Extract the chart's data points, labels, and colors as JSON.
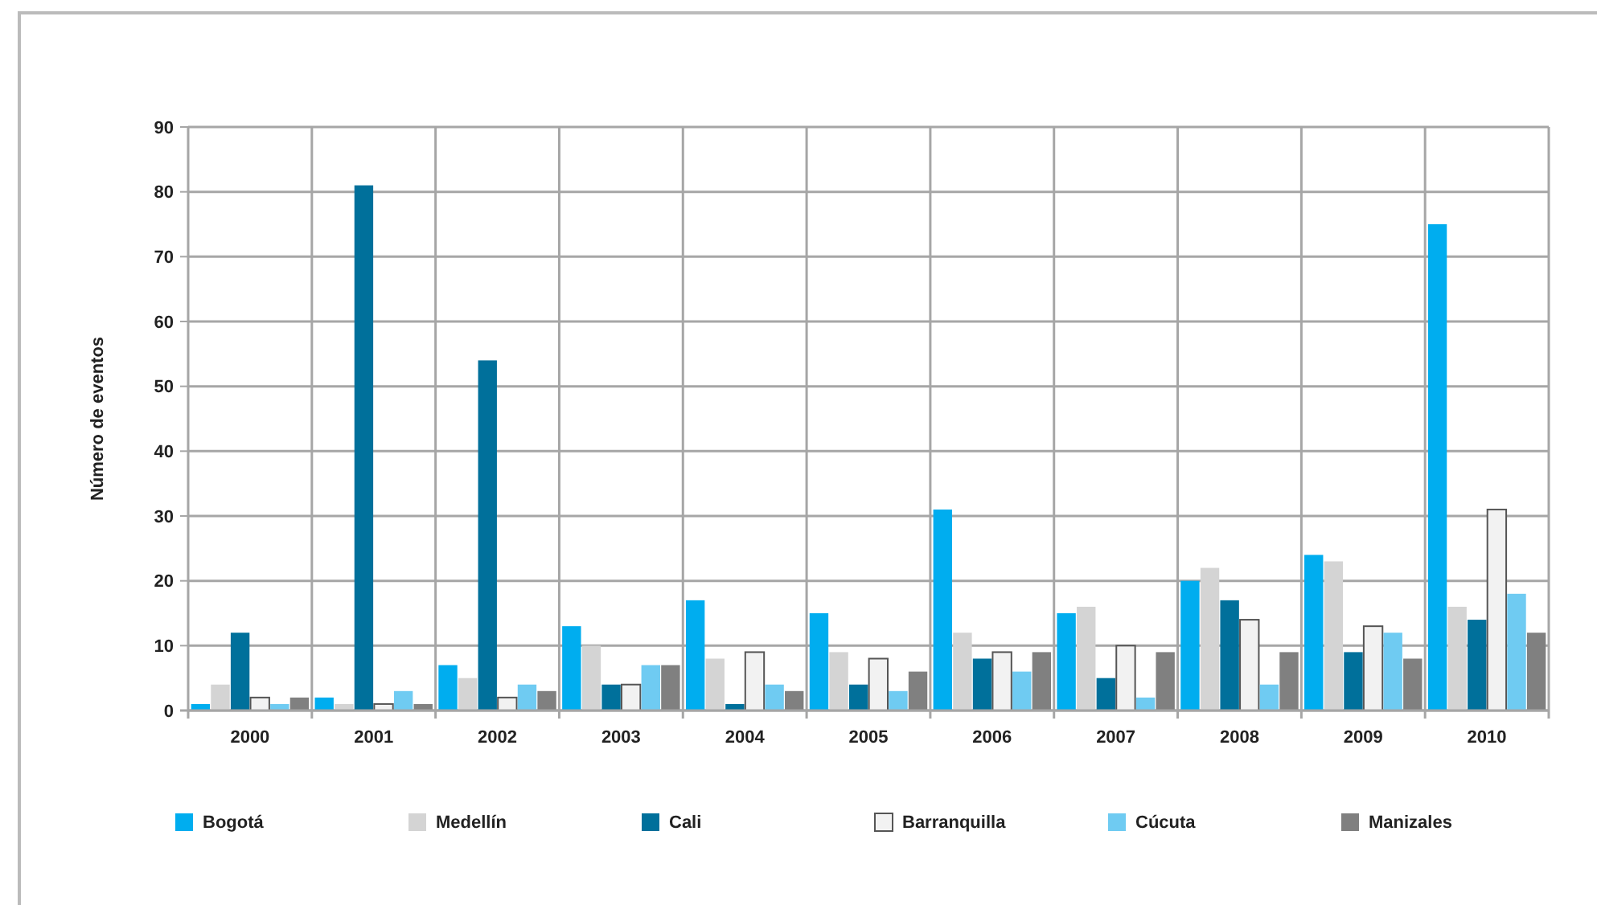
{
  "chart_data": {
    "type": "bar",
    "ylabel": "Número de eventos",
    "categories": [
      "2000",
      "2001",
      "2002",
      "2003",
      "2004",
      "2005",
      "2006",
      "2007",
      "2008",
      "2009",
      "2010"
    ],
    "series": [
      {
        "name": "Bogotá",
        "color": "#00adef",
        "values": [
          1,
          2,
          7,
          13,
          17,
          15,
          31,
          15,
          20,
          24,
          75
        ]
      },
      {
        "name": "Medellín",
        "color": "#d4d4d4",
        "values": [
          4,
          1,
          5,
          10,
          8,
          9,
          12,
          16,
          22,
          23,
          16
        ]
      },
      {
        "name": "Cali",
        "color": "#00709b",
        "values": [
          12,
          81,
          54,
          4,
          1,
          4,
          8,
          5,
          17,
          9,
          14
        ]
      },
      {
        "name": "Barranquilla",
        "color": "#f2f2f2",
        "values": [
          2,
          1,
          2,
          4,
          9,
          8,
          9,
          10,
          14,
          13,
          31
        ]
      },
      {
        "name": "Cúcuta",
        "color": "#6fcbf2",
        "values": [
          1,
          3,
          4,
          7,
          4,
          3,
          6,
          2,
          4,
          12,
          18
        ]
      },
      {
        "name": "Manizales",
        "color": "#808080",
        "values": [
          2,
          1,
          3,
          7,
          3,
          6,
          9,
          9,
          9,
          8,
          12
        ]
      }
    ],
    "ylim": [
      0,
      90
    ],
    "yticks": [
      0,
      10,
      20,
      30,
      40,
      50,
      60,
      70,
      80,
      90
    ],
    "grid": true,
    "legend": "bottom"
  }
}
